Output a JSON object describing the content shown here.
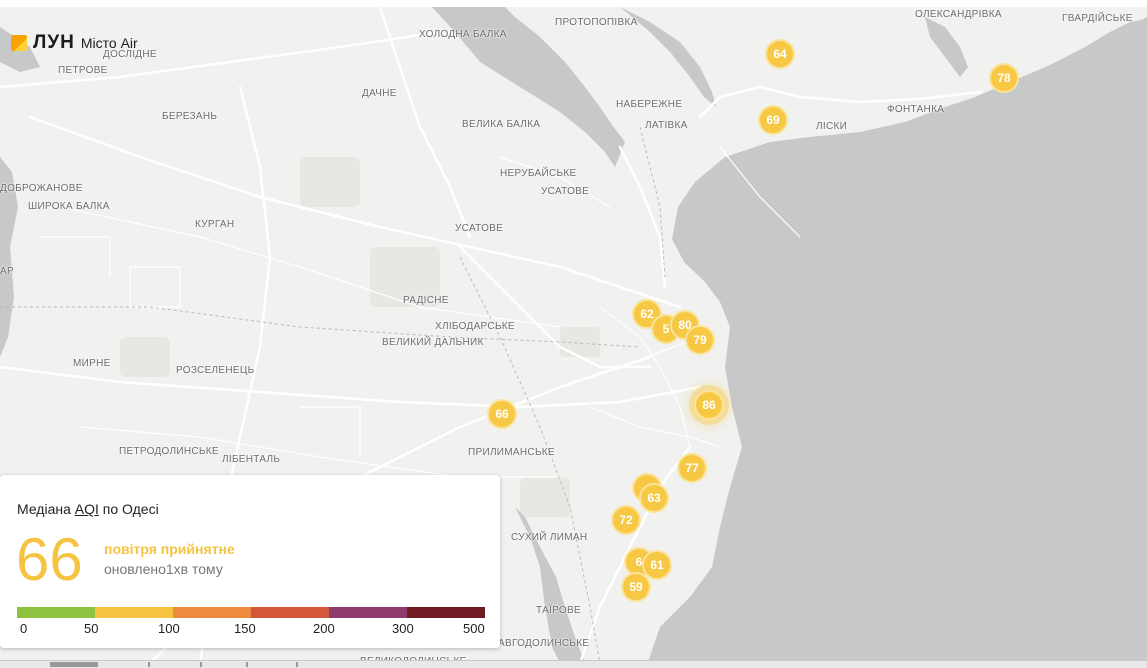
{
  "brand": {
    "name": "ЛУН",
    "subtitle": "Місто Air"
  },
  "places": [
    {
      "id": "protopopivka",
      "label": "ПРОТОПОПІВКА"
    },
    {
      "id": "oleksandrivka",
      "label": "ОЛЕКСАНДРІВКА"
    },
    {
      "id": "hvardiiske",
      "label": "ГВАРДІЙСЬКЕ"
    },
    {
      "id": "kholodna-balka",
      "label": "ХОЛОДНА БАЛКА"
    },
    {
      "id": "doslidne",
      "label": "ДОСЛІДНЕ"
    },
    {
      "id": "petrove",
      "label": "ПЕТРОВЕ"
    },
    {
      "id": "dachne",
      "label": "ДАЧНЕ"
    },
    {
      "id": "naberezhne",
      "label": "НАБЕРЕЖНЕ"
    },
    {
      "id": "latyvka",
      "label": "ЛАТІВКА"
    },
    {
      "id": "fontanka",
      "label": "ФОНТАНКА"
    },
    {
      "id": "lisky",
      "label": "ЛІСКИ"
    },
    {
      "id": "berezan",
      "label": "БЕРЕЗАНЬ"
    },
    {
      "id": "velyka-balka",
      "label": "ВЕЛИКА БАЛКА"
    },
    {
      "id": "nerubaiske",
      "label": "НЕРУБАЙСЬКЕ"
    },
    {
      "id": "usatove-1",
      "label": "УСАТОВЕ"
    },
    {
      "id": "dobrozhanove",
      "label": "ДОБРОЖАНОВЕ"
    },
    {
      "id": "shyroka-balka",
      "label": "ШИРОКА БАЛКА"
    },
    {
      "id": "kurhan",
      "label": "КУРГАН"
    },
    {
      "id": "usatove-2",
      "label": "УСАТОВЕ"
    },
    {
      "id": "ar",
      "label": "АР"
    },
    {
      "id": "radisne",
      "label": "РАДІСНЕ"
    },
    {
      "id": "khlibodarske",
      "label": "ХЛІБОДАРСЬКЕ"
    },
    {
      "id": "velykyi-dalnyk",
      "label": "ВЕЛИКИЙ ДАЛЬНИК"
    },
    {
      "id": "myrne",
      "label": "МИРНЕ"
    },
    {
      "id": "roselenets",
      "label": "РОЗСЕЛЕНЕЦЬ"
    },
    {
      "id": "petrodolynske",
      "label": "ПЕТРОДОЛИНСЬКЕ"
    },
    {
      "id": "libental",
      "label": "ЛІБЕНТАЛЬ"
    },
    {
      "id": "prylymanske",
      "label": "ПРИЛИМАНСЬКЕ"
    },
    {
      "id": "sukhyi-lyman",
      "label": "СУХИЙ ЛИМАН"
    },
    {
      "id": "tairove",
      "label": "ТАЇРОВЕ"
    },
    {
      "id": "avhodolynske",
      "label": "АВГОДОЛИНСЬКЕ"
    },
    {
      "id": "velykodolynske",
      "label": "ВЕЛИКОДОЛИНСЬКЕ"
    }
  ],
  "markers": [
    {
      "id": "m1",
      "value": "64"
    },
    {
      "id": "m2",
      "value": "78"
    },
    {
      "id": "m3",
      "value": "69"
    },
    {
      "id": "m4",
      "value": "62"
    },
    {
      "id": "m5",
      "value": "5"
    },
    {
      "id": "m6",
      "value": "80"
    },
    {
      "id": "m7",
      "value": "79"
    },
    {
      "id": "m8",
      "value": "86"
    },
    {
      "id": "m9",
      "value": "66"
    },
    {
      "id": "m10",
      "value": "77"
    },
    {
      "id": "m11",
      "value": ""
    },
    {
      "id": "m12",
      "value": "63"
    },
    {
      "id": "m13",
      "value": "72"
    },
    {
      "id": "m14",
      "value": "6"
    },
    {
      "id": "m15",
      "value": "61"
    },
    {
      "id": "m16",
      "value": "59"
    }
  ],
  "summary": {
    "title_prefix": "Медіана",
    "title_link": "AQI",
    "title_suffix": "по Одесі",
    "value": "66",
    "status": "повітря прийнятне",
    "updated": "оновлено1хв тому",
    "scale_colors": [
      "#8fc23f",
      "#f6c342",
      "#ee8a3d",
      "#d5573b",
      "#8e3a6e",
      "#701b24"
    ],
    "ticks": [
      "0",
      "50",
      "100",
      "150",
      "200",
      "300",
      "500"
    ],
    "value_color": "#f6c342"
  },
  "colors": {
    "water": "#c6c8c9",
    "land": "#f1f1ef",
    "road": "#ffffff",
    "marker": "#f7c843"
  }
}
